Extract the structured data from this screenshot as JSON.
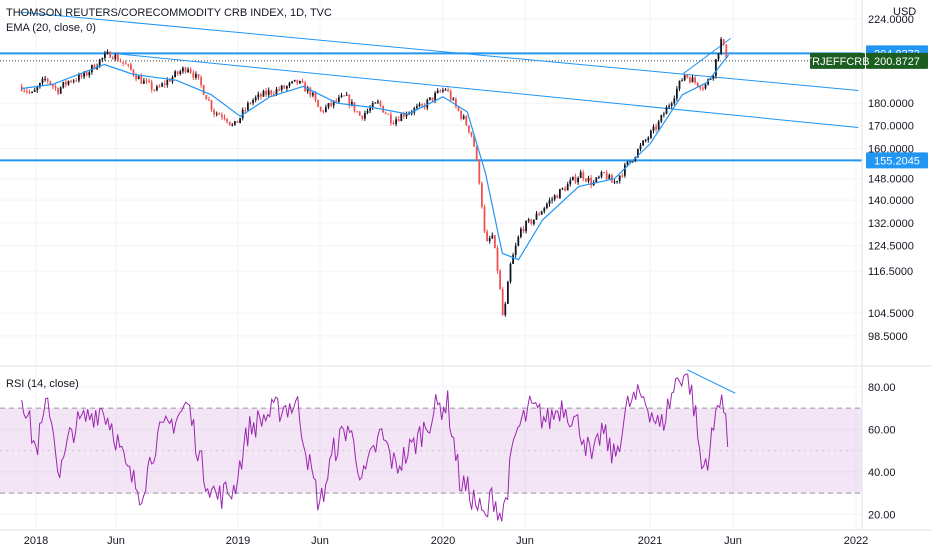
{
  "header": {
    "title": "THOMSON REUTERS/CORECOMMODITY CRB INDEX, 1D, TVC",
    "ema_label": "EMA (20, close, 0)",
    "currency": "USD"
  },
  "rsi_panel": {
    "label": "RSI (14, close)"
  },
  "colors": {
    "up": "#26a69a",
    "down": "#ef5350",
    "candle_dark": "#131722",
    "ema": "#2196f3",
    "trendline": "#2196f3",
    "hline": "#2196f3",
    "rsi_line": "#9c27b0",
    "rsi_band": "#9c27b0",
    "label_green": "#1b5e20",
    "label_blue": "#2196f3"
  },
  "chart_data": [
    {
      "type": "candlestick",
      "title": "THOMSON REUTERS/CORECOMMODITY CRB INDEX, 1D, TVC",
      "x_ticks": [
        "2018",
        "Jun",
        "2019",
        "Jun",
        "2020",
        "Jun",
        "2021",
        "Jun",
        "2022"
      ],
      "y_scale": "log",
      "y_ticks": [
        "224.0000",
        "180.0000",
        "170.0000",
        "160.0000",
        "148.0000",
        "140.0000",
        "132.0000",
        "124.5000",
        "116.5000",
        "104.5000",
        "98.5000"
      ],
      "y_tick_values": [
        224,
        180,
        170,
        160,
        148,
        140,
        132,
        124.5,
        116.5,
        104.5,
        98.5
      ],
      "ylim": [
        93,
        228
      ],
      "series_path": [
        [
          "2017-12-05",
          188
        ],
        [
          "2017-12-25",
          184
        ],
        [
          "2018-01-20",
          192
        ],
        [
          "2018-02-10",
          186
        ],
        [
          "2018-03-05",
          191
        ],
        [
          "2018-04-01",
          193
        ],
        [
          "2018-05-01",
          201
        ],
        [
          "2018-05-22",
          205
        ],
        [
          "2018-06-20",
          198
        ],
        [
          "2018-07-15",
          191
        ],
        [
          "2018-08-10",
          186
        ],
        [
          "2018-09-05",
          192
        ],
        [
          "2018-10-05",
          198
        ],
        [
          "2018-10-25",
          190
        ],
        [
          "2018-11-20",
          176
        ],
        [
          "2018-12-10",
          174
        ],
        [
          "2018-12-24",
          169
        ],
        [
          "2019-01-25",
          181
        ],
        [
          "2019-02-25",
          185
        ],
        [
          "2019-03-25",
          187
        ],
        [
          "2019-04-20",
          190
        ],
        [
          "2019-05-15",
          185
        ],
        [
          "2019-06-01",
          176
        ],
        [
          "2019-06-25",
          180
        ],
        [
          "2019-07-15",
          183
        ],
        [
          "2019-08-10",
          174
        ],
        [
          "2019-09-10",
          180
        ],
        [
          "2019-10-05",
          172
        ],
        [
          "2019-10-30",
          176
        ],
        [
          "2019-11-25",
          178
        ],
        [
          "2019-12-20",
          184
        ],
        [
          "2020-01-06",
          187
        ],
        [
          "2020-01-25",
          178
        ],
        [
          "2020-02-10",
          172
        ],
        [
          "2020-02-25",
          165
        ],
        [
          "2020-03-10",
          145
        ],
        [
          "2020-03-20",
          124
        ],
        [
          "2020-04-01",
          128
        ],
        [
          "2020-04-12",
          116
        ],
        [
          "2020-04-22",
          102
        ],
        [
          "2020-05-05",
          118
        ],
        [
          "2020-05-25",
          130
        ],
        [
          "2020-06-15",
          133
        ],
        [
          "2020-07-10",
          139
        ],
        [
          "2020-08-05",
          144
        ],
        [
          "2020-09-05",
          150
        ],
        [
          "2020-09-25",
          146
        ],
        [
          "2020-10-15",
          150
        ],
        [
          "2020-10-30",
          146
        ],
        [
          "2020-11-25",
          154
        ],
        [
          "2020-12-20",
          162
        ],
        [
          "2021-01-15",
          170
        ],
        [
          "2021-02-10",
          182
        ],
        [
          "2021-03-05",
          194
        ],
        [
          "2021-03-25",
          190
        ],
        [
          "2021-04-10",
          188
        ],
        [
          "2021-04-25",
          194
        ],
        [
          "2021-05-10",
          212
        ],
        [
          "2021-05-14",
          208
        ],
        [
          "2021-05-24",
          201
        ]
      ],
      "ema_20_path": [
        [
          "2017-12-05",
          187
        ],
        [
          "2018-02-01",
          189
        ],
        [
          "2018-05-10",
          199
        ],
        [
          "2018-07-01",
          194
        ],
        [
          "2018-09-15",
          191
        ],
        [
          "2018-11-15",
          184
        ],
        [
          "2019-01-05",
          174
        ],
        [
          "2019-03-01",
          183
        ],
        [
          "2019-05-01",
          188
        ],
        [
          "2019-07-01",
          180
        ],
        [
          "2019-09-01",
          178
        ],
        [
          "2019-11-01",
          175
        ],
        [
          "2020-01-01",
          183
        ],
        [
          "2020-02-15",
          176
        ],
        [
          "2020-03-20",
          150
        ],
        [
          "2020-04-20",
          122
        ],
        [
          "2020-05-20",
          120
        ],
        [
          "2020-07-01",
          133
        ],
        [
          "2020-09-01",
          145
        ],
        [
          "2020-11-01",
          148
        ],
        [
          "2021-01-01",
          162
        ],
        [
          "2021-03-01",
          184
        ],
        [
          "2021-04-15",
          190
        ],
        [
          "2021-05-24",
          204
        ]
      ],
      "horizontal_lines": [
        {
          "value": 204.8373,
          "label": "204.8373"
        },
        {
          "value": 155.2045,
          "label": "155.2045"
        }
      ],
      "last_price": {
        "symbol": "TRJEFFCRB",
        "value": 200.8727,
        "label": "200.8727"
      },
      "trendlines": [
        {
          "from": [
            "2017-12-01",
            228
          ],
          "to": [
            "2022-01-05",
            186
          ]
        },
        {
          "from": [
            "2018-05-20",
            205
          ],
          "to": [
            "2022-01-05",
            169
          ]
        },
        {
          "from": [
            "2021-03-01",
            194
          ],
          "to": [
            "2021-05-28",
            213
          ]
        }
      ]
    },
    {
      "type": "line",
      "title": "RSI (14, close)",
      "y_ticks": [
        "80.00",
        "60.00",
        "40.00",
        "20.00"
      ],
      "y_tick_values": [
        80,
        60,
        40,
        20
      ],
      "ylim": [
        15,
        87
      ],
      "band": [
        30,
        70
      ],
      "band_midline": 50,
      "series_path": [
        [
          "2017-12-05",
          78
        ],
        [
          "2018-01-01",
          50
        ],
        [
          "2018-01-25",
          74
        ],
        [
          "2018-02-15",
          38
        ],
        [
          "2018-03-10",
          60
        ],
        [
          "2018-04-10",
          66
        ],
        [
          "2018-05-05",
          70
        ],
        [
          "2018-05-25",
          62
        ],
        [
          "2018-06-20",
          40
        ],
        [
          "2018-07-15",
          30
        ],
        [
          "2018-08-10",
          55
        ],
        [
          "2018-09-10",
          64
        ],
        [
          "2018-10-05",
          72
        ],
        [
          "2018-11-01",
          40
        ],
        [
          "2018-11-25",
          28
        ],
        [
          "2018-12-25",
          32
        ],
        [
          "2019-01-20",
          60
        ],
        [
          "2019-02-20",
          66
        ],
        [
          "2019-03-20",
          70
        ],
        [
          "2019-04-20",
          72
        ],
        [
          "2019-05-15",
          40
        ],
        [
          "2019-06-01",
          24
        ],
        [
          "2019-06-25",
          50
        ],
        [
          "2019-07-20",
          62
        ],
        [
          "2019-08-15",
          36
        ],
        [
          "2019-09-15",
          58
        ],
        [
          "2019-10-10",
          42
        ],
        [
          "2019-11-10",
          52
        ],
        [
          "2019-12-20",
          70
        ],
        [
          "2020-01-10",
          72
        ],
        [
          "2020-02-01",
          36
        ],
        [
          "2020-02-25",
          28
        ],
        [
          "2020-03-20",
          17
        ],
        [
          "2020-04-01",
          30
        ],
        [
          "2020-04-20",
          18
        ],
        [
          "2020-05-15",
          58
        ],
        [
          "2020-06-10",
          70
        ],
        [
          "2020-07-10",
          64
        ],
        [
          "2020-08-05",
          72
        ],
        [
          "2020-09-05",
          60
        ],
        [
          "2020-09-25",
          44
        ],
        [
          "2020-10-10",
          60
        ],
        [
          "2020-11-01",
          46
        ],
        [
          "2020-11-25",
          72
        ],
        [
          "2020-12-20",
          76
        ],
        [
          "2021-01-20",
          60
        ],
        [
          "2021-02-20",
          84
        ],
        [
          "2021-03-10",
          88
        ],
        [
          "2021-03-25",
          66
        ],
        [
          "2021-04-05",
          41
        ],
        [
          "2021-04-20",
          50
        ],
        [
          "2021-05-10",
          80
        ],
        [
          "2021-05-24",
          49
        ]
      ],
      "trendline": {
        "from": [
          "2021-03-10",
          88
        ],
        "to": [
          "2021-06-05",
          77
        ]
      }
    }
  ]
}
